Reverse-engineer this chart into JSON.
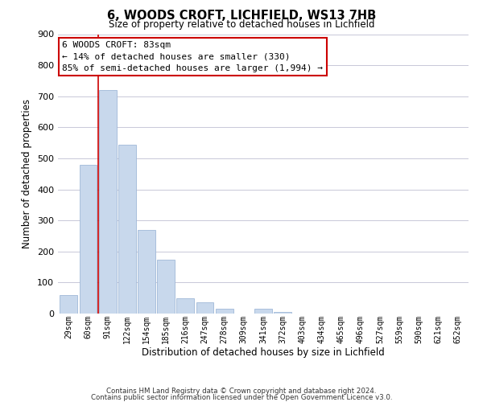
{
  "title": "6, WOODS CROFT, LICHFIELD, WS13 7HB",
  "subtitle": "Size of property relative to detached houses in Lichfield",
  "xlabel": "Distribution of detached houses by size in Lichfield",
  "ylabel": "Number of detached properties",
  "categories": [
    "29sqm",
    "60sqm",
    "91sqm",
    "122sqm",
    "154sqm",
    "185sqm",
    "216sqm",
    "247sqm",
    "278sqm",
    "309sqm",
    "341sqm",
    "372sqm",
    "403sqm",
    "434sqm",
    "465sqm",
    "496sqm",
    "527sqm",
    "559sqm",
    "590sqm",
    "621sqm",
    "652sqm"
  ],
  "values": [
    60,
    480,
    720,
    545,
    270,
    173,
    48,
    35,
    15,
    0,
    15,
    5,
    0,
    0,
    0,
    0,
    0,
    0,
    0,
    0,
    0
  ],
  "bar_color": "#c8d8ec",
  "bar_edge_color": "#a0b8d8",
  "ylim": [
    0,
    900
  ],
  "yticks": [
    0,
    100,
    200,
    300,
    400,
    500,
    600,
    700,
    800,
    900
  ],
  "vline_x": 1.5,
  "vline_color": "#cc0000",
  "annotation_title": "6 WOODS CROFT: 83sqm",
  "annotation_line1": "← 14% of detached houses are smaller (330)",
  "annotation_line2": "85% of semi-detached houses are larger (1,994) →",
  "footer_line1": "Contains HM Land Registry data © Crown copyright and database right 2024.",
  "footer_line2": "Contains public sector information licensed under the Open Government Licence v3.0.",
  "background_color": "#ffffff",
  "grid_color": "#c8c8d8"
}
